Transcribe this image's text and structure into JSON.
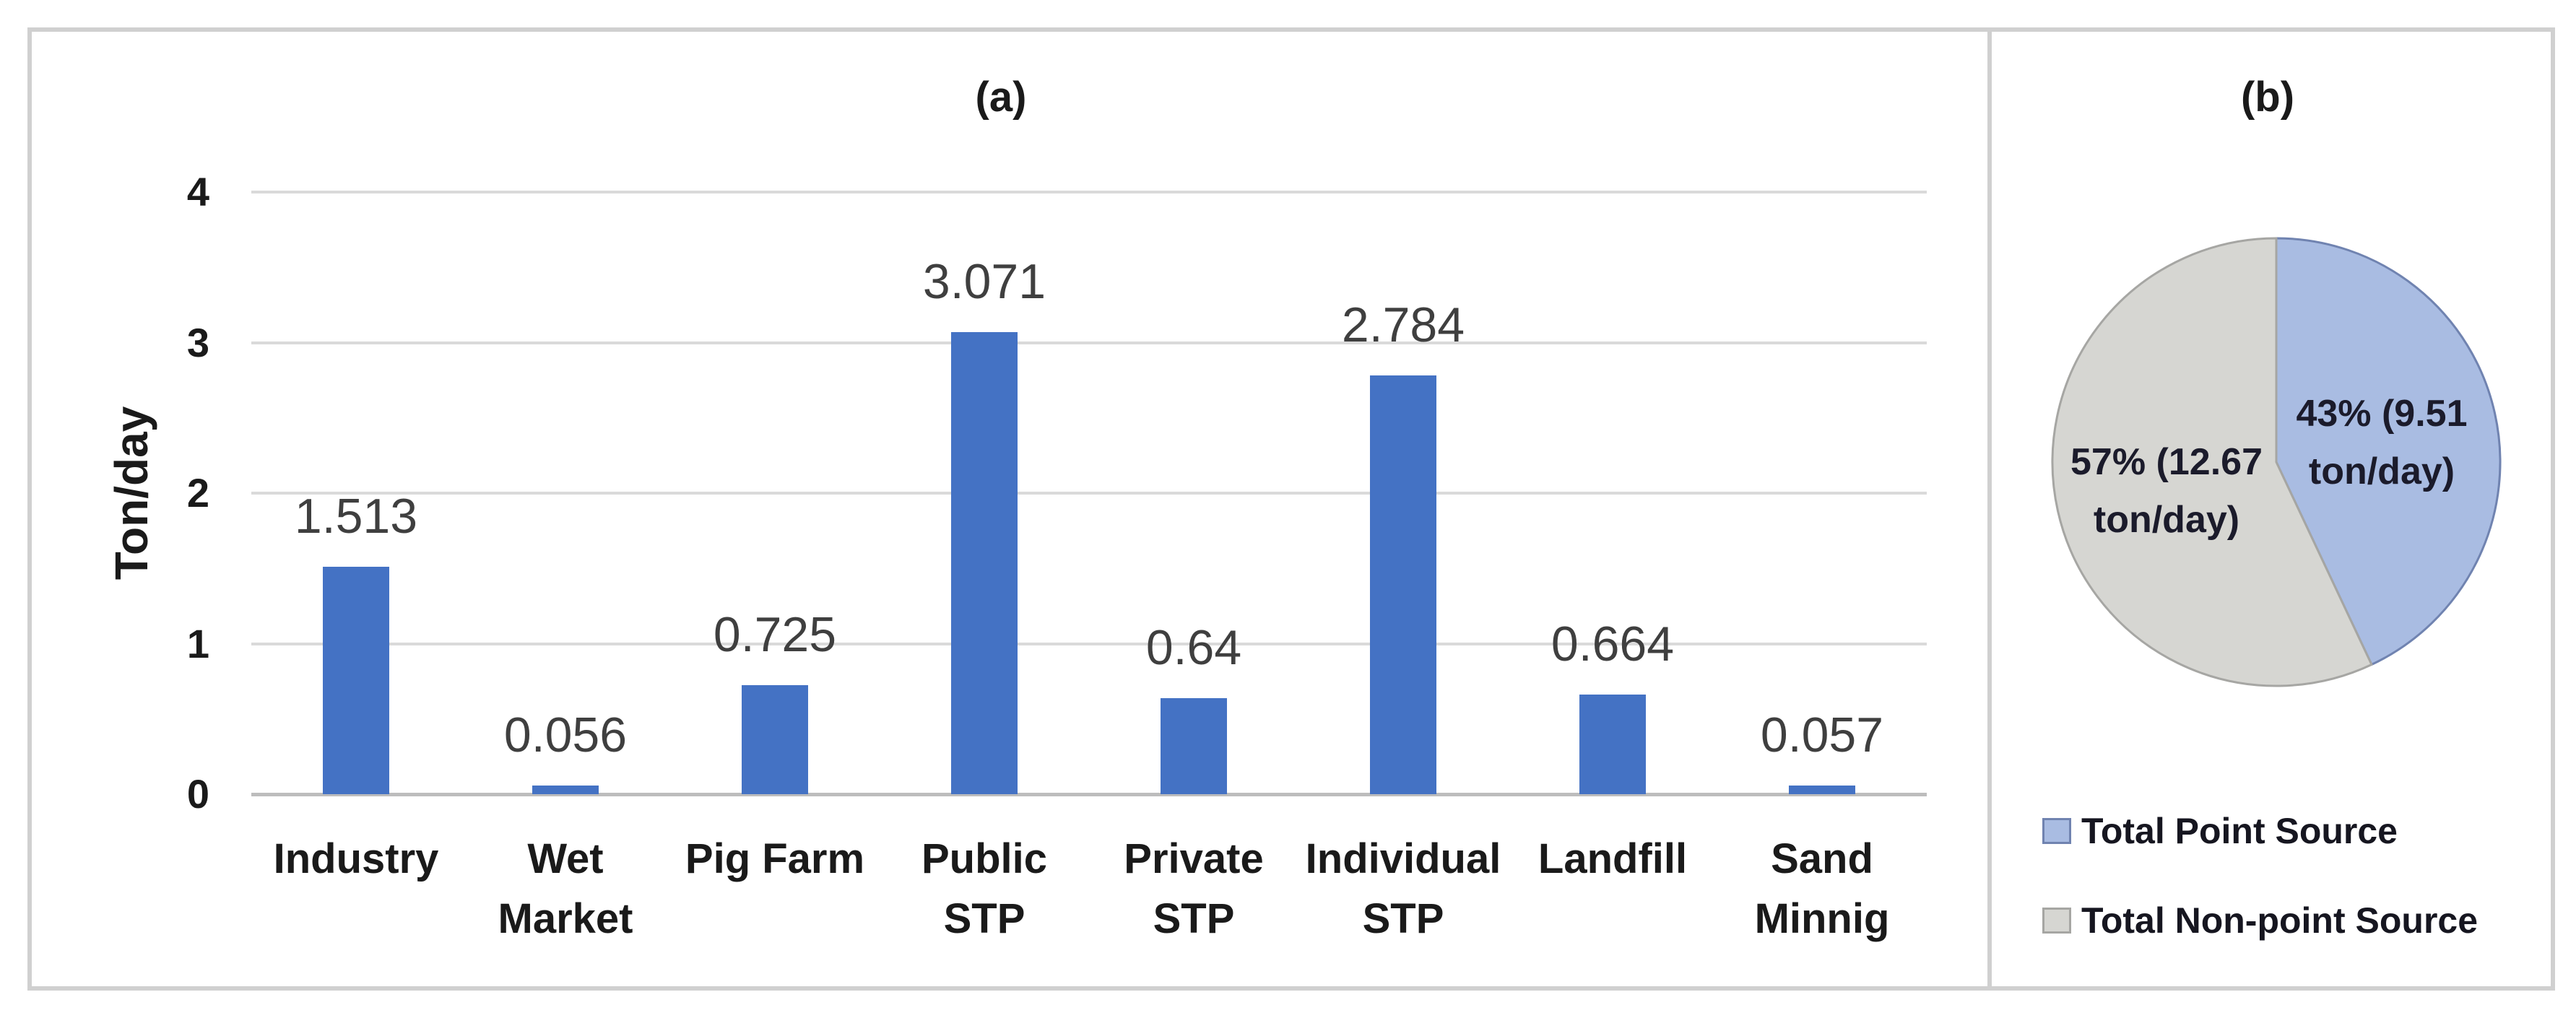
{
  "figure": {
    "panel_a_title": "(a)",
    "panel_b_title": "(b)"
  },
  "colors": {
    "bar_blue": "#4472c4",
    "pie_blue": "#a9bce2",
    "pie_blue_border": "#7083b0",
    "pie_gray": "#d6d6d2",
    "pie_gray_border": "#a6a6a3",
    "gridline": "#dadada",
    "axis_line": "#bdbdbd",
    "panel_border": "#d0d0d0"
  },
  "chart_data": [
    {
      "type": "bar",
      "panel": "a",
      "title": "(a)",
      "ylabel": "Ton/day",
      "xlabel": "",
      "ylim": [
        0,
        4
      ],
      "yticks": [
        0,
        1,
        2,
        3,
        4
      ],
      "grid": true,
      "legend_position": "none",
      "categories": [
        "Industry",
        "Wet Market",
        "Pig Farm",
        "Public STP",
        "Private STP",
        "Individual STP",
        "Landfill",
        "Sand Minnig"
      ],
      "category_lines": [
        [
          "Industry"
        ],
        [
          "Wet",
          "Market"
        ],
        [
          "Pig Farm"
        ],
        [
          "Public",
          "STP"
        ],
        [
          "Private",
          "STP"
        ],
        [
          "Individual",
          "STP"
        ],
        [
          "Landfill"
        ],
        [
          "Sand",
          "Minnig"
        ]
      ],
      "values": [
        1.513,
        0.056,
        0.725,
        3.071,
        0.64,
        2.784,
        0.664,
        0.057
      ],
      "value_labels": [
        "1.513",
        "0.056",
        "0.725",
        "3.071",
        "0.64",
        "2.784",
        "0.664",
        "0.057"
      ]
    },
    {
      "type": "pie",
      "panel": "b",
      "title": "(b)",
      "start_angle_deg": 0,
      "direction": "clockwise",
      "slices": [
        {
          "name": "Total Point Source",
          "pct": 43,
          "value": 9.51,
          "unit": "ton/day",
          "label": "43% (9.51 ton/day)",
          "label_lines": [
            "43% (9.51",
            "ton/day)"
          ]
        },
        {
          "name": "Total Non-point Source",
          "pct": 57,
          "value": 12.67,
          "unit": "ton/day",
          "label": "57% (12.67 ton/day)",
          "label_lines": [
            "57% (12.67",
            "ton/day)"
          ]
        }
      ],
      "legend": [
        "Total Point Source",
        "Total Non-point Source"
      ],
      "legend_position": "bottom-left"
    }
  ]
}
